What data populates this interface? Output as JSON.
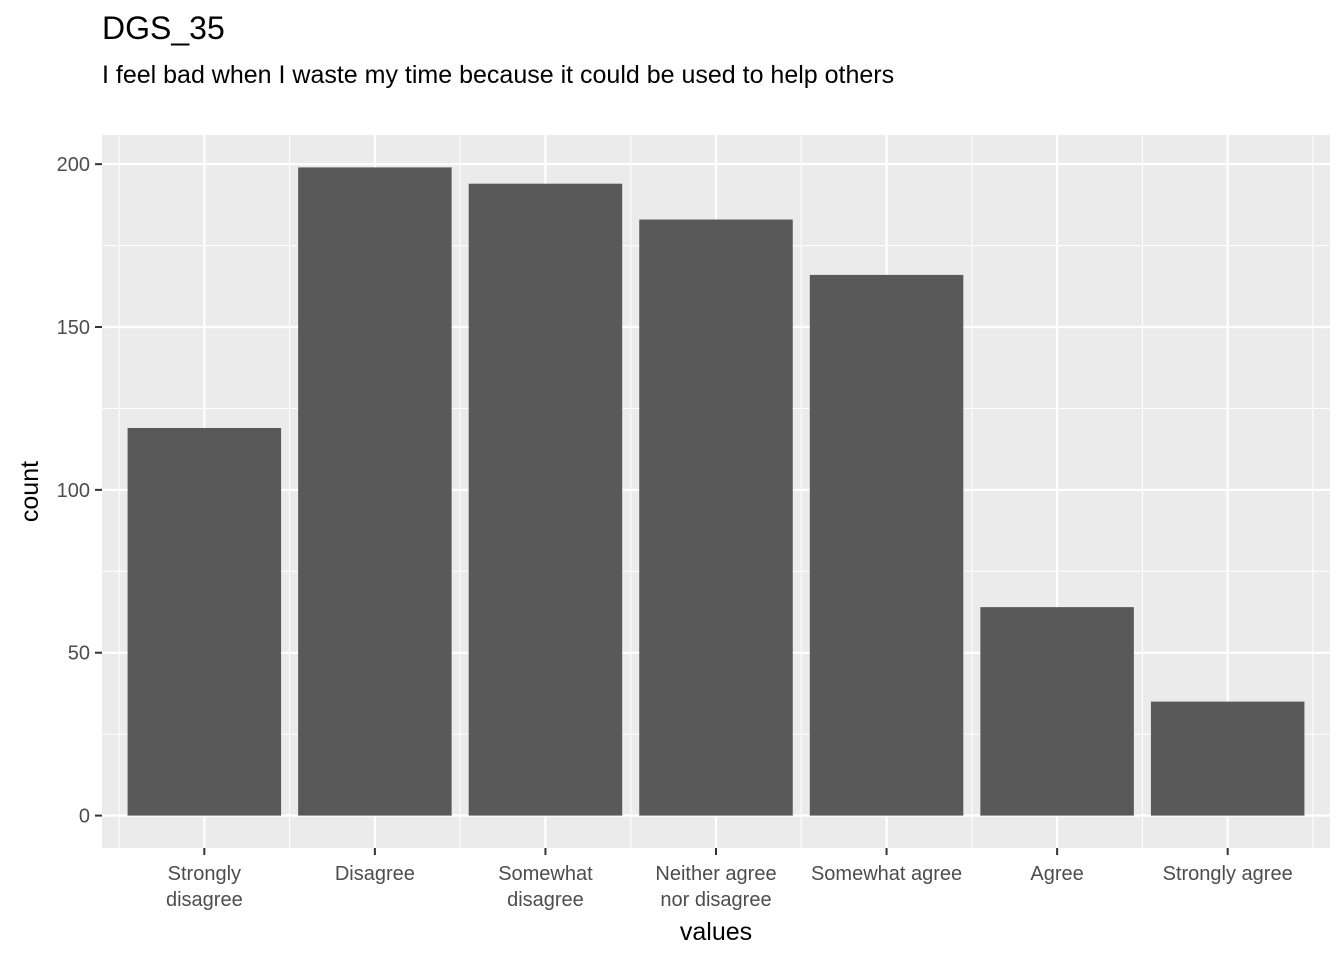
{
  "chart_data": {
    "type": "bar",
    "title": "DGS_35",
    "subtitle": "I feel bad when I waste my time because it could be used to help others",
    "xlabel": "values",
    "ylabel": "count",
    "categories": [
      [
        "Strongly",
        "disagree"
      ],
      [
        "Disagree"
      ],
      [
        "Somewhat",
        "disagree"
      ],
      [
        "Neither agree",
        "nor disagree"
      ],
      [
        "Somewhat agree"
      ],
      [
        "Agree"
      ],
      [
        "Strongly agree"
      ]
    ],
    "values": [
      119,
      199,
      194,
      183,
      166,
      64,
      35
    ],
    "yticks": [
      0,
      50,
      100,
      150,
      200
    ],
    "ylim": [
      -9.95,
      208.95
    ],
    "grid": true,
    "colors": {
      "bar": "#595959",
      "panel": "#ebebeb",
      "grid": "#ffffff"
    }
  }
}
